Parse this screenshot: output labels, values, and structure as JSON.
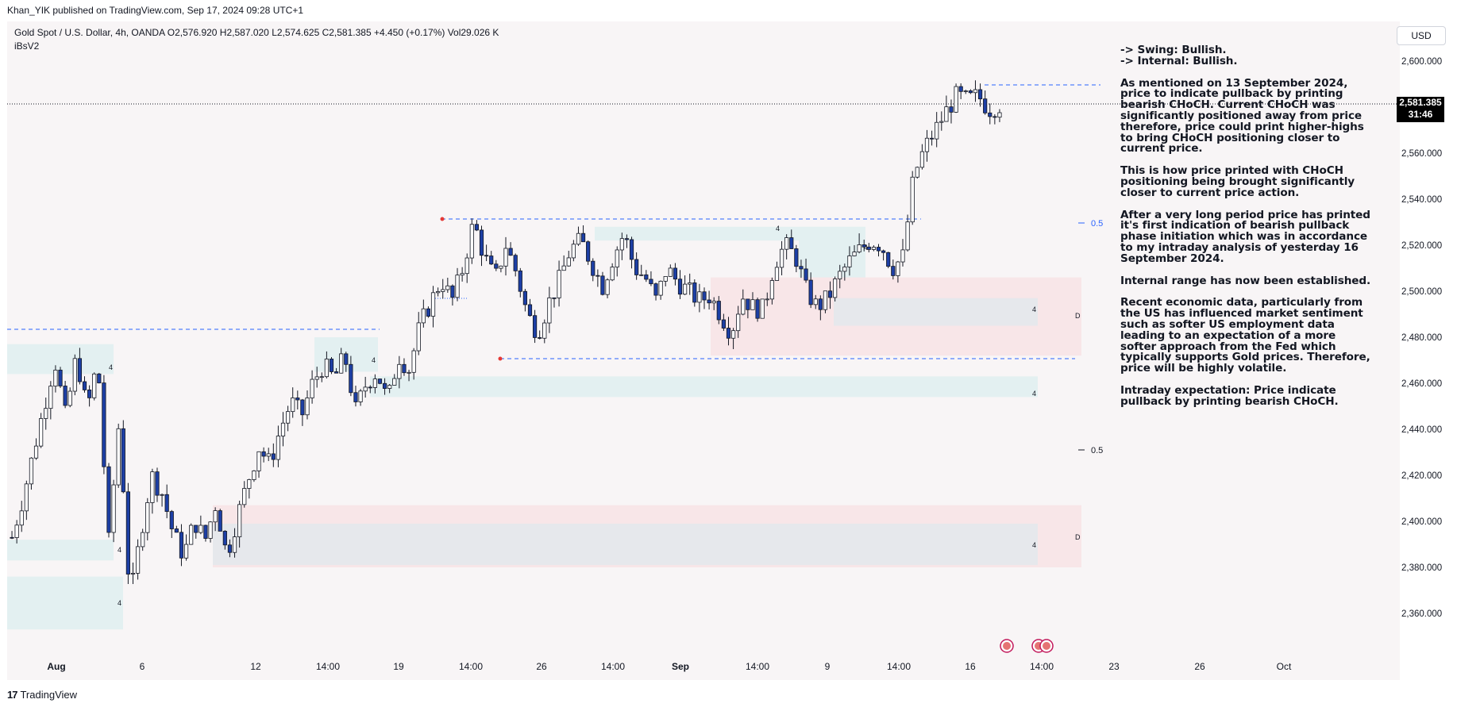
{
  "header": {
    "publisher": "Khan_YIK published on TradingView.com, Sep 17, 2024 09:28 UTC+1"
  },
  "legend": {
    "symbol_line": "Gold Spot / U.S. Dollar, 4h, OANDA  O2,576.920  H2,587.020  L2,574.625  C2,581.385  +4.450 (+0.17%)  Vol29.026 K",
    "indicator": "iBsV2"
  },
  "currency_button": "USD",
  "current_price": {
    "value": "2,581.385",
    "countdown": "31:46"
  },
  "annotation": {
    "paragraphs": [
      "-> Swing:  Bullish.\n-> Internal:  Bullish.",
      "As mentioned on 13 September 2024, price to indicate pullback by printing bearish CHoCH. Current CHoCH was significantly positioned away from price therefore, price could print higher-highs to bring CHoCH positioning closer to current price.",
      "This is how price printed with CHoCH positioning being brought significantly closer to current price action.",
      "After a very long period price has printed it's first indication of bearish pullback phase initiation which was in accordance to my intraday analysis of yesterday 16 September 2024.",
      "Internal range has now been established.",
      "Recent economic data, particularly from the US has influenced market sentiment such as softer US employment data leading to an expectation of a more softer approach from the Fed which typically supports Gold prices. Therefore, price will be highly volatile.",
      "Intraday expectation: Price indicate pullback by printing bearish CHoCH."
    ]
  },
  "footer": {
    "logo": "17",
    "brand": "TradingView"
  },
  "chart_data": {
    "type": "candlestick",
    "symbol": "Gold Spot / U.S. Dollar",
    "timeframe": "4h",
    "y_axis": {
      "ticks": [
        2360,
        2380,
        2400,
        2420,
        2440,
        2460,
        2480,
        2500,
        2520,
        2540,
        2560,
        2580,
        2600
      ],
      "tick_labels": [
        "2,360.000",
        "2,380.000",
        "2,400.000",
        "2,420.000",
        "2,440.000",
        "2,460.000",
        "2,480.000",
        "2,500.000",
        "2,520.000",
        "2,540.000",
        "2,560.000",
        "2,580.000",
        "2,600.000"
      ],
      "ylim": [
        2346,
        2610
      ]
    },
    "x_axis": {
      "labels": [
        "Aug",
        "6",
        "12",
        "14:00",
        "19",
        "14:00",
        "26",
        "14:00",
        "Sep",
        "14:00",
        "9",
        "14:00",
        "16",
        "14:00",
        "23",
        "26",
        "Oct"
      ],
      "bold": [
        "Aug",
        "Sep"
      ]
    },
    "close_path": [
      2393,
      2410,
      2430,
      2450,
      2470,
      2445,
      2472,
      2448,
      2470,
      2390,
      2445,
      2365,
      2395,
      2420,
      2412,
      2395,
      2385,
      2400,
      2392,
      2408,
      2385,
      2402,
      2418,
      2432,
      2425,
      2440,
      2452,
      2446,
      2460,
      2468,
      2462,
      2472,
      2448,
      2460,
      2465,
      2452,
      2472,
      2466,
      2485,
      2495,
      2505,
      2496,
      2510,
      2530,
      2515,
      2505,
      2520,
      2508,
      2490,
      2482,
      2495,
      2505,
      2518,
      2522,
      2512,
      2502,
      2515,
      2525,
      2510,
      2506,
      2496,
      2510,
      2504,
      2500,
      2496,
      2498,
      2490,
      2482,
      2498,
      2493,
      2492,
      2512,
      2520,
      2515,
      2500,
      2493,
      2497,
      2506,
      2513,
      2518,
      2522,
      2520,
      2510,
      2515,
      2550,
      2562,
      2570,
      2578,
      2585,
      2583,
      2585,
      2579,
      2581
    ],
    "candle_count": 205,
    "ohlc_last": {
      "open": 2576.92,
      "high": 2587.02,
      "low": 2574.625,
      "close": 2581.385
    },
    "change": "+4.450 (+0.17%)",
    "volume": "29.026 K",
    "levels": [
      {
        "kind": "last-price",
        "price": 2581.385,
        "style": "dotted"
      },
      {
        "kind": "swing-high",
        "price": 2589,
        "style": "dashed-blue"
      },
      {
        "kind": "internal-high",
        "price": 2531,
        "style": "dashed-blue",
        "label": "0.5"
      },
      {
        "kind": "internal-low",
        "price": 2471,
        "style": "dashed-blue"
      },
      {
        "kind": "structure",
        "price": 2483,
        "style": "dashed-blue"
      },
      {
        "kind": "equilibrium",
        "price": 2439,
        "label": "0.5"
      }
    ],
    "zones": [
      {
        "kind": "demand",
        "color": "#e3f0f1",
        "low": 2464,
        "high": 2477,
        "label": "4"
      },
      {
        "kind": "demand",
        "color": "#e3f0f1",
        "low": 2383,
        "high": 2392,
        "label": "4"
      },
      {
        "kind": "demand",
        "color": "#e3f0f1",
        "low": 2353,
        "high": 2376,
        "label": "4"
      },
      {
        "kind": "demand",
        "color": "#e3f0f1",
        "low": 2454,
        "high": 2463,
        "label": "4"
      },
      {
        "kind": "demand",
        "color": "#e3f0f1",
        "low": 2465,
        "high": 2480,
        "label": "4"
      },
      {
        "kind": "supply",
        "color": "#e3f0f1",
        "low": 2522,
        "high": 2528,
        "label": "4"
      },
      {
        "kind": "supply",
        "color": "#e3f0f1",
        "low": 2504,
        "high": 2528,
        "label": "4"
      },
      {
        "kind": "discount",
        "color": "#f8e6e8",
        "low": 2472,
        "high": 2506,
        "label": "D"
      },
      {
        "kind": "discount",
        "color": "#f8e6e8",
        "low": 2380,
        "high": 2407,
        "label": "D"
      },
      {
        "kind": "order-block",
        "color": "#e6e8ec",
        "low": 2485,
        "high": 2497,
        "label": "4"
      },
      {
        "kind": "order-block",
        "color": "#e6e8ec",
        "low": 2381,
        "high": 2399,
        "label": "4"
      }
    ],
    "colors": {
      "bull_body": "#ffffff",
      "bear_body": "#1d3fa5",
      "wick": "#131722",
      "level_line": "#2962ff",
      "marker": "#e53935"
    }
  }
}
